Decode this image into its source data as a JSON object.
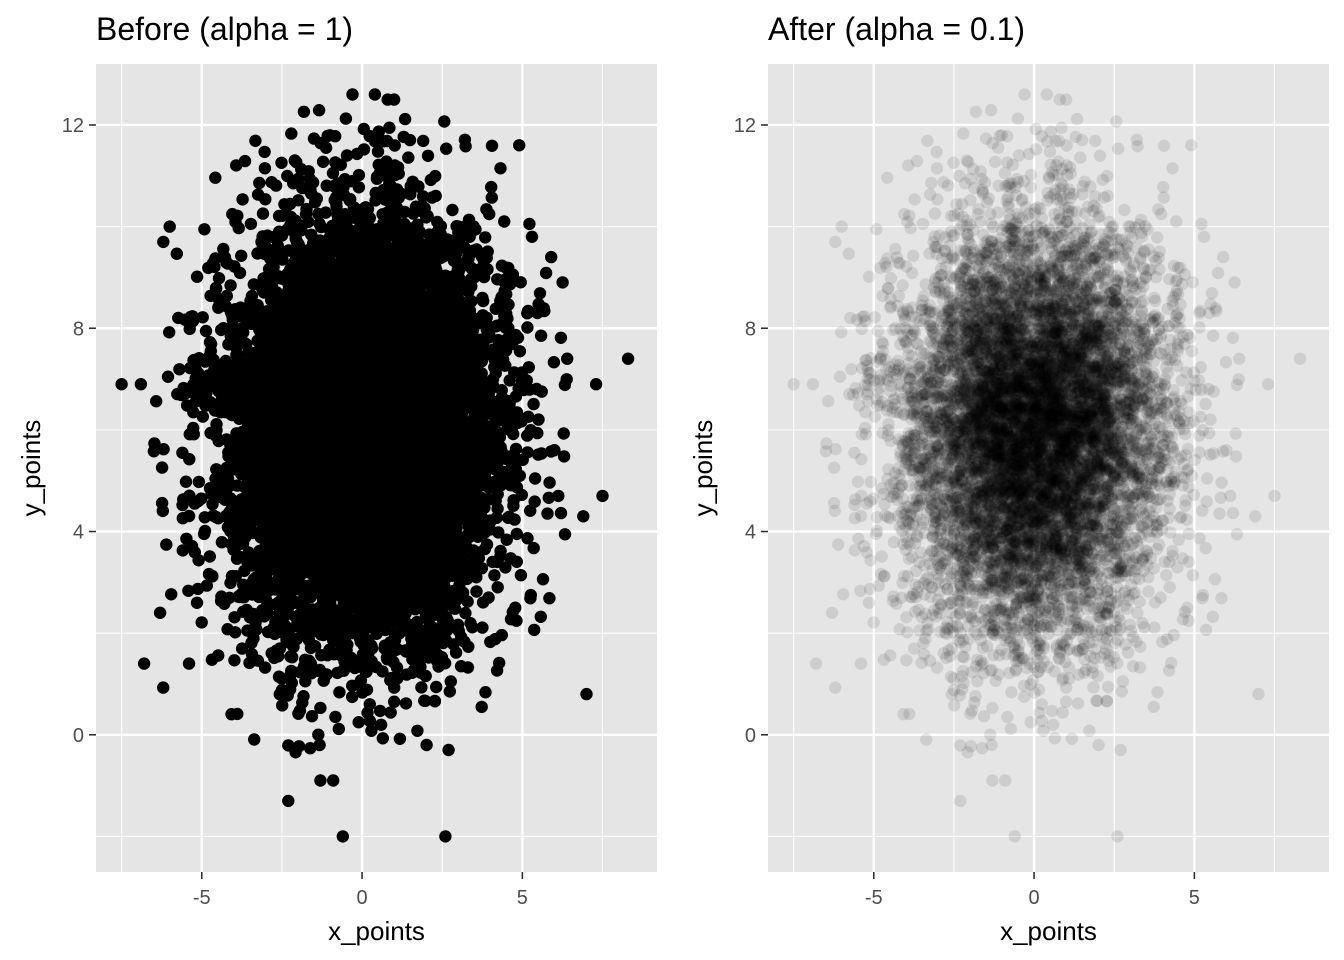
{
  "chart_data": [
    {
      "type": "scatter",
      "title": "Before (alpha = 1)",
      "xlabel": "x_points",
      "ylabel": "y_points",
      "xlim": [
        -8.3,
        9.2
      ],
      "ylim": [
        -2.7,
        13.2
      ],
      "x_ticks": [
        -5,
        0,
        5
      ],
      "y_ticks": [
        0,
        4,
        8,
        12
      ],
      "x_tick_labels": [
        "-5",
        "0",
        "5"
      ],
      "y_tick_labels": [
        "0",
        "4",
        "8",
        "12"
      ],
      "grid": true,
      "panel_background": "#e5e5e5",
      "point_color": "#000000",
      "point_alpha": 1,
      "distribution": {
        "n_points": 10000,
        "x_mean": 0,
        "x_sd": 2,
        "y_mean": 6,
        "y_sd": 2
      },
      "series": [
        {
          "x": [
            8.3,
            -7.5,
            -6.9,
            7.3,
            -6.8,
            7.5,
            6.9,
            7.0,
            -2.3,
            -0.6,
            2.6,
            -0.9,
            -1.3,
            2.7,
            0.8,
            1.0,
            0.4,
            -0.3,
            4.9,
            -6.2,
            -6.0,
            -5.4,
            -6.3,
            5.3,
            6.4,
            6.0,
            5.9
          ],
          "y": [
            7.4,
            6.9,
            6.9,
            6.9,
            1.4,
            4.7,
            4.3,
            0.8,
            -1.3,
            -2.0,
            -2.0,
            -0.9,
            -0.9,
            -0.3,
            12.5,
            12.5,
            12.6,
            12.6,
            11.6,
            9.7,
            10.0,
            1.4,
            2.4,
            9.8,
            7.4,
            5.6,
            9.4
          ]
        }
      ]
    },
    {
      "type": "scatter",
      "title": "After (alpha = 0.1)",
      "xlabel": "x_points",
      "ylabel": "y_points",
      "xlim": [
        -8.3,
        9.2
      ],
      "ylim": [
        -2.7,
        13.2
      ],
      "x_ticks": [
        -5,
        0,
        5
      ],
      "y_ticks": [
        0,
        4,
        8,
        12
      ],
      "x_tick_labels": [
        "-5",
        "0",
        "5"
      ],
      "y_tick_labels": [
        "0",
        "4",
        "8",
        "12"
      ],
      "grid": true,
      "panel_background": "#e5e5e5",
      "point_color": "#000000",
      "point_alpha": 0.1,
      "distribution": {
        "n_points": 10000,
        "x_mean": 0,
        "x_sd": 2,
        "y_mean": 6,
        "y_sd": 2
      },
      "series": [
        {
          "x": [
            8.3,
            -7.5,
            -6.9,
            7.3,
            -6.8,
            7.5,
            6.9,
            7.0,
            -2.3,
            -0.6,
            2.6,
            -0.9,
            -1.3,
            2.7,
            0.8,
            1.0,
            0.4,
            -0.3,
            4.9,
            -6.2,
            -6.0,
            -5.4,
            -6.3,
            5.3,
            6.4,
            6.0,
            5.9
          ],
          "y": [
            7.4,
            6.9,
            6.9,
            6.9,
            1.4,
            4.7,
            4.3,
            0.8,
            -1.3,
            -2.0,
            -2.0,
            -0.9,
            -0.9,
            -0.3,
            12.5,
            12.5,
            12.6,
            12.6,
            11.6,
            9.7,
            10.0,
            1.4,
            2.4,
            9.8,
            7.4,
            5.6,
            9.4
          ]
        }
      ]
    }
  ]
}
